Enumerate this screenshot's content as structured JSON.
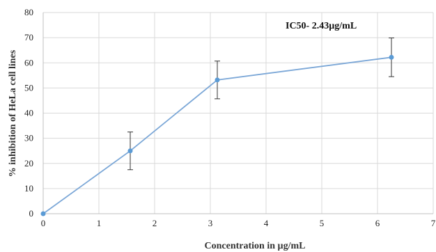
{
  "chart_data": {
    "type": "line",
    "x": [
      0,
      1.5625,
      3.125,
      6.25
    ],
    "series": [
      {
        "values": [
          0,
          25,
          53.2,
          62.2
        ],
        "error": [
          0,
          7.5,
          7.5,
          7.7
        ]
      }
    ],
    "xlabel": "Concentration in µg/mL",
    "ylabel": "% inhibition of HeLa cell lines",
    "xlim": [
      0,
      7
    ],
    "ylim": [
      0,
      80
    ],
    "xticks": [
      "0",
      "1",
      "2",
      "3",
      "4",
      "5",
      "6",
      "7"
    ],
    "yticks": [
      "0",
      "10",
      "20",
      "30",
      "40",
      "50",
      "60",
      "70",
      "80"
    ],
    "grid": true,
    "annotation": "IC50- 2.43µg/mL",
    "colors": {
      "line": "#7ba7d7",
      "marker": "#5b9bd5",
      "error_bar": "#333333",
      "grid": "#d9d9d9"
    }
  }
}
